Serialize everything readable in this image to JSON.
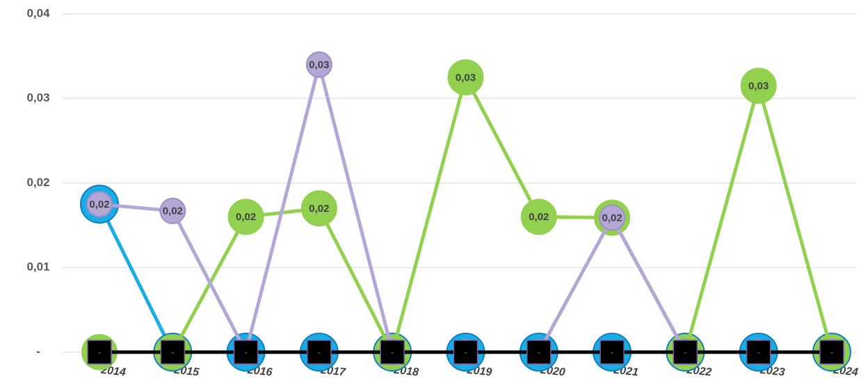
{
  "chart_data": {
    "type": "line",
    "categories": [
      "2014",
      "2015",
      "2016",
      "2017",
      "2018",
      "2019",
      "2020",
      "2021",
      "2022",
      "2023",
      "2024"
    ],
    "ylim": [
      0,
      0.04
    ],
    "yticks": [
      {
        "value": 0,
        "label": "-"
      },
      {
        "value": 0.01,
        "label": "0,01"
      },
      {
        "value": 0.02,
        "label": "0,02"
      },
      {
        "value": 0.03,
        "label": "0,03"
      },
      {
        "value": 0.04,
        "label": "0,04"
      }
    ],
    "grid": true,
    "series": [
      {
        "color": "#1aace4",
        "values": [
          0.0175,
          0,
          0,
          0,
          0,
          0,
          0,
          0,
          0,
          0,
          0
        ]
      },
      {
        "color": "#92d050",
        "values": [
          0,
          0,
          0.016,
          0.017,
          0,
          0.0325,
          0.016,
          0.0159,
          0,
          0.0315,
          0
        ],
        "value_labels": [
          null,
          null,
          "0,02",
          "0,02",
          null,
          "0,03",
          "0,02",
          null,
          null,
          "0,03",
          null
        ]
      },
      {
        "color": "#b4a7d6",
        "values": [
          0.0175,
          0.0167,
          0,
          0.034,
          0,
          0,
          0,
          0.0159,
          0,
          0,
          0
        ],
        "value_labels": [
          "0,02",
          "0,02",
          null,
          "0,03",
          null,
          null,
          null,
          "0,02",
          null,
          null,
          null
        ]
      },
      {
        "color": "#000000",
        "values": [
          0,
          0,
          0,
          0,
          0,
          0,
          0,
          0,
          0,
          0,
          0
        ],
        "value_labels": [
          "-",
          "-",
          "-",
          "-",
          "-",
          "-",
          "-",
          "-",
          "-",
          "-",
          "-"
        ]
      }
    ]
  }
}
